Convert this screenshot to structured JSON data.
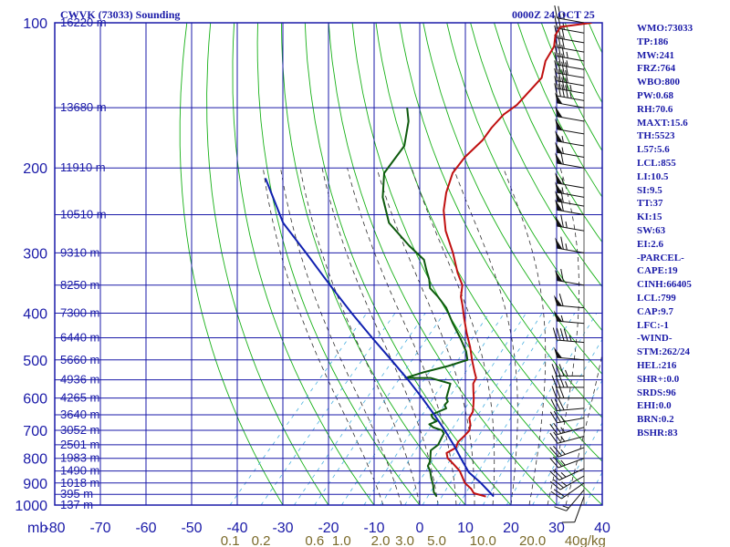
{
  "header": {
    "station": "CWVK (73033) Sounding",
    "time": "0000Z 24 OCT 25"
  },
  "indices": [
    "WMO:73033",
    "TP:186",
    "MW:241",
    "FRZ:764",
    "WBO:800",
    "PW:0.68",
    "RH:70.6",
    "MAXT:15.6",
    "TH:5523",
    "L57:5.6",
    "LCL:855",
    "LI:10.5",
    "SI:9.5",
    "TT:37",
    "KI:15",
    "SW:63",
    "EI:2.6",
    "-PARCEL-",
    "CAPE:19",
    "CINH:66405",
    "LCL:799",
    "CAP:9.7",
    "LFC:-1",
    "-WIND-",
    "STM:262/24",
    "HEL:216",
    "SHR+:0.0",
    "SRDS:96",
    "EHI:0.0",
    "BRN:0.2",
    "BSHR:83"
  ],
  "colors": {
    "grid": "#1a1aa8",
    "dry_adiabat": "#17b017",
    "moist_adiabat": "#2e2e2e",
    "mixing_ratio": "#4ab0e0",
    "temperature": "#c01010",
    "dewpoint": "#0e5a0e",
    "parcel": "#1020b0",
    "mixing_label": "#7b6a2a"
  },
  "chart_data": {
    "type": "line",
    "title": "CWVK (73033) Sounding",
    "time": "0000Z 24 OCT 25",
    "pressure_axis": {
      "unit": "mb",
      "scale": "log",
      "range": [
        1000,
        100
      ],
      "ticks": [
        "100",
        "200",
        "300",
        "400",
        "500",
        "600",
        "700",
        "800",
        "900",
        "1000"
      ]
    },
    "temperature_axis": {
      "range": [
        -80,
        40
      ],
      "skewed": true,
      "ticks": [
        "-80",
        "-70",
        "-60",
        "-50",
        "-40",
        "-30",
        "-20",
        "-10",
        "0",
        "10",
        "20",
        "30",
        "40"
      ]
    },
    "height_labels": [
      {
        "p": 100,
        "label": "16220 m"
      },
      {
        "p": 150,
        "label": "13680 m"
      },
      {
        "p": 200,
        "label": "11910 m"
      },
      {
        "p": 250,
        "label": "10510 m"
      },
      {
        "p": 300,
        "label": "9310 m"
      },
      {
        "p": 350,
        "label": "8250 m"
      },
      {
        "p": 400,
        "label": "7300 m"
      },
      {
        "p": 450,
        "label": "6440 m"
      },
      {
        "p": 500,
        "label": "5660 m"
      },
      {
        "p": 550,
        "label": "4936 m"
      },
      {
        "p": 600,
        "label": "4265 m"
      },
      {
        "p": 650,
        "label": "3640 m"
      },
      {
        "p": 700,
        "label": "3052 m"
      },
      {
        "p": 750,
        "label": "2501 m"
      },
      {
        "p": 800,
        "label": "1983 m"
      },
      {
        "p": 850,
        "label": "1490 m"
      },
      {
        "p": 900,
        "label": "1018 m"
      },
      {
        "p": 950,
        "label": "395 m"
      },
      {
        "p": 1000,
        "label": "137 m"
      }
    ],
    "mixing_ratio_labels": [
      {
        "w": 0.1,
        "label": "0.1"
      },
      {
        "w": 0.2,
        "label": "0.2"
      },
      {
        "w": 0.6,
        "label": "0.6"
      },
      {
        "w": 1.0,
        "label": "1.0"
      },
      {
        "w": 2.0,
        "label": "2.0"
      },
      {
        "w": 3.0,
        "label": "3.0"
      },
      {
        "w": 5.0,
        "label": "5.0"
      },
      {
        "w": 10.0,
        "label": "10.0"
      },
      {
        "w": 20.0,
        "label": "20.0"
      },
      {
        "w": 40.0,
        "label": "40g/kg"
      }
    ],
    "series": [
      {
        "name": "Temperature",
        "points": [
          [
            960,
            12.8
          ],
          [
            945,
            9.5
          ],
          [
            925,
            8.0
          ],
          [
            900,
            5.5
          ],
          [
            850,
            2.0
          ],
          [
            820,
            -1.0
          ],
          [
            800,
            -3.2
          ],
          [
            780,
            -4.5
          ],
          [
            760,
            -3.5
          ],
          [
            740,
            -4.2
          ],
          [
            720,
            -4.0
          ],
          [
            700,
            -4.0
          ],
          [
            680,
            -5.0
          ],
          [
            660,
            -6.5
          ],
          [
            640,
            -7.0
          ],
          [
            620,
            -8.2
          ],
          [
            600,
            -9.5
          ],
          [
            580,
            -11.0
          ],
          [
            560,
            -12.5
          ],
          [
            545,
            -13.0
          ],
          [
            530,
            -14.5
          ],
          [
            500,
            -17.5
          ],
          [
            470,
            -20.5
          ],
          [
            440,
            -24.0
          ],
          [
            410,
            -27.5
          ],
          [
            385,
            -30.5
          ],
          [
            370,
            -32.5
          ],
          [
            350,
            -34.5
          ],
          [
            330,
            -38.0
          ],
          [
            300,
            -43.0
          ],
          [
            270,
            -49.0
          ],
          [
            245,
            -53.5
          ],
          [
            225,
            -56.5
          ],
          [
            205,
            -59.0
          ],
          [
            190,
            -59.5
          ],
          [
            175,
            -59.0
          ],
          [
            165,
            -59.5
          ],
          [
            155,
            -59.5
          ],
          [
            148,
            -58.5
          ],
          [
            140,
            -58.5
          ],
          [
            130,
            -58.5
          ],
          [
            120,
            -61.0
          ],
          [
            112,
            -62.0
          ],
          [
            106,
            -64.0
          ],
          [
            102,
            -64.5
          ],
          [
            100,
            -58.5
          ]
        ]
      },
      {
        "name": "Dewpoint",
        "points": [
          [
            960,
            2.0
          ],
          [
            940,
            0.5
          ],
          [
            910,
            -1.0
          ],
          [
            880,
            -2.8
          ],
          [
            850,
            -4.5
          ],
          [
            830,
            -6.0
          ],
          [
            810,
            -6.5
          ],
          [
            790,
            -7.5
          ],
          [
            770,
            -8.5
          ],
          [
            750,
            -8.0
          ],
          [
            730,
            -8.5
          ],
          [
            710,
            -9.0
          ],
          [
            700,
            -10.0
          ],
          [
            690,
            -12.5
          ],
          [
            680,
            -14.0
          ],
          [
            670,
            -13.0
          ],
          [
            660,
            -14.5
          ],
          [
            650,
            -15.5
          ],
          [
            640,
            -14.5
          ],
          [
            630,
            -13.5
          ],
          [
            620,
            -14.5
          ],
          [
            610,
            -14.5
          ],
          [
            600,
            -15.5
          ],
          [
            580,
            -16.5
          ],
          [
            560,
            -17.5
          ],
          [
            545,
            -23.0
          ],
          [
            545,
            -28.5
          ],
          [
            530,
            -25.5
          ],
          [
            515,
            -21.5
          ],
          [
            500,
            -18.5
          ],
          [
            480,
            -20.5
          ],
          [
            450,
            -24.5
          ],
          [
            420,
            -29.0
          ],
          [
            390,
            -33.5
          ],
          [
            370,
            -37.5
          ],
          [
            355,
            -41.0
          ],
          [
            340,
            -43.0
          ],
          [
            325,
            -45.5
          ],
          [
            310,
            -48.0
          ],
          [
            290,
            -54.0
          ],
          [
            260,
            -63.0
          ],
          [
            230,
            -69.5
          ],
          [
            205,
            -74.0
          ],
          [
            180,
            -75.0
          ],
          [
            160,
            -79.0
          ],
          [
            150,
            -82.0
          ]
        ]
      },
      {
        "name": "Parcel",
        "points": [
          [
            960,
            14.5
          ],
          [
            900,
            9.0
          ],
          [
            855,
            4.2
          ],
          [
            800,
            -0.3
          ],
          [
            750,
            -4.6
          ],
          [
            700,
            -9.4
          ],
          [
            650,
            -14.8
          ],
          [
            600,
            -20.8
          ],
          [
            550,
            -27.5
          ],
          [
            500,
            -35.2
          ],
          [
            450,
            -43.8
          ],
          [
            400,
            -53.2
          ],
          [
            350,
            -63.5
          ],
          [
            300,
            -75.2
          ],
          [
            260,
            -86.2
          ],
          [
            210,
            -99.0
          ]
        ]
      }
    ],
    "wind_barbs": {
      "unit": "kt",
      "levels": [
        {
          "p": 960,
          "dir": 200,
          "spd": 10
        },
        {
          "p": 930,
          "dir": 220,
          "spd": 15
        },
        {
          "p": 900,
          "dir": 235,
          "spd": 20
        },
        {
          "p": 870,
          "dir": 240,
          "spd": 25
        },
        {
          "p": 840,
          "dir": 245,
          "spd": 25
        },
        {
          "p": 800,
          "dir": 250,
          "spd": 25
        },
        {
          "p": 760,
          "dir": 250,
          "spd": 25
        },
        {
          "p": 720,
          "dir": 255,
          "spd": 25
        },
        {
          "p": 690,
          "dir": 255,
          "spd": 25
        },
        {
          "p": 660,
          "dir": 260,
          "spd": 25
        },
        {
          "p": 630,
          "dir": 265,
          "spd": 30
        },
        {
          "p": 600,
          "dir": 270,
          "spd": 30
        },
        {
          "p": 570,
          "dir": 270,
          "spd": 35
        },
        {
          "p": 540,
          "dir": 270,
          "spd": 35
        },
        {
          "p": 500,
          "dir": 275,
          "spd": 50
        },
        {
          "p": 460,
          "dir": 275,
          "spd": 45
        },
        {
          "p": 420,
          "dir": 275,
          "spd": 55
        },
        {
          "p": 390,
          "dir": 275,
          "spd": 60
        },
        {
          "p": 350,
          "dir": 280,
          "spd": 60
        },
        {
          "p": 300,
          "dir": 280,
          "spd": 65
        },
        {
          "p": 270,
          "dir": 280,
          "spd": 65
        },
        {
          "p": 250,
          "dir": 280,
          "spd": 60
        },
        {
          "p": 240,
          "dir": 280,
          "spd": 60
        },
        {
          "p": 230,
          "dir": 280,
          "spd": 55
        },
        {
          "p": 220,
          "dir": 280,
          "spd": 55
        },
        {
          "p": 200,
          "dir": 280,
          "spd": 60
        },
        {
          "p": 190,
          "dir": 280,
          "spd": 55
        },
        {
          "p": 180,
          "dir": 280,
          "spd": 55
        },
        {
          "p": 170,
          "dir": 280,
          "spd": 50
        },
        {
          "p": 160,
          "dir": 280,
          "spd": 50
        },
        {
          "p": 150,
          "dir": 280,
          "spd": 50
        },
        {
          "p": 145,
          "dir": 280,
          "spd": 45
        },
        {
          "p": 140,
          "dir": 280,
          "spd": 45
        },
        {
          "p": 135,
          "dir": 280,
          "spd": 40
        },
        {
          "p": 130,
          "dir": 280,
          "spd": 40
        },
        {
          "p": 125,
          "dir": 280,
          "spd": 35
        },
        {
          "p": 120,
          "dir": 280,
          "spd": 35
        },
        {
          "p": 115,
          "dir": 280,
          "spd": 30
        },
        {
          "p": 110,
          "dir": 280,
          "spd": 30
        },
        {
          "p": 105,
          "dir": 280,
          "spd": 25
        },
        {
          "p": 100,
          "dir": 280,
          "spd": 25
        }
      ]
    },
    "grid": true
  }
}
